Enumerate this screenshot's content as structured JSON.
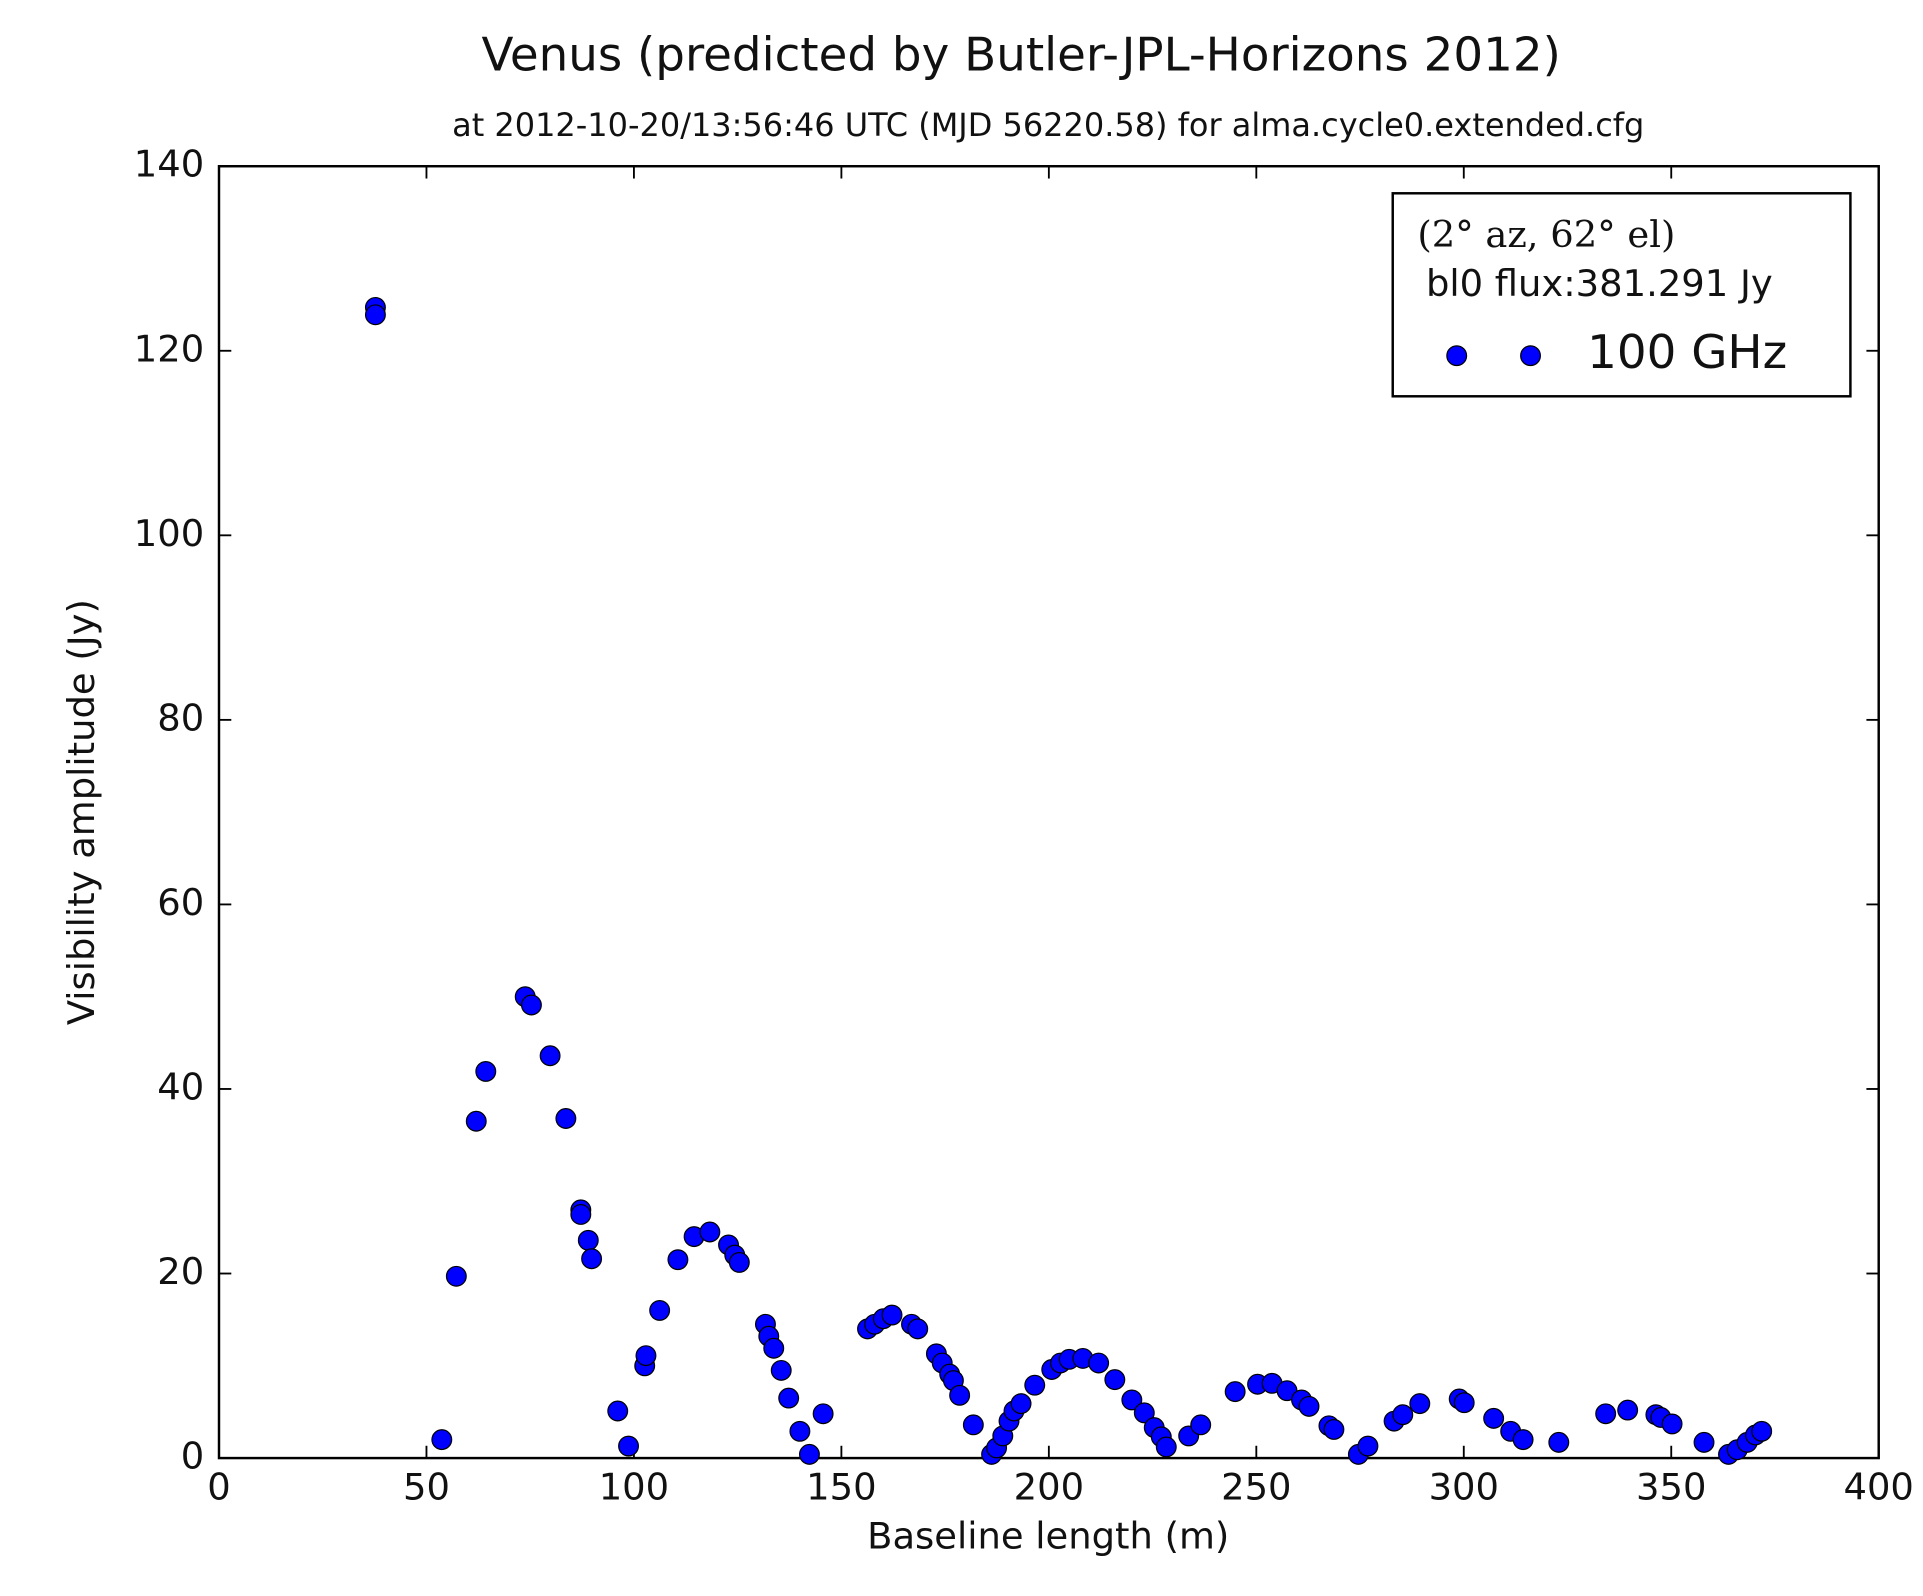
{
  "chart_data": {
    "type": "scatter",
    "title": "Venus (predicted by Butler-JPL-Horizons 2012)",
    "subtitle": "at 2012-10-20/13:56:46 UTC (MJD 56220.58) for alma.cycle0.extended.cfg",
    "x_label": "Baseline length (m)",
    "y_label": "Visibility amplitude (Jy)",
    "legend_title": [
      "(2°  az, 62°  el)",
      "bl0 flux:381.291 Jy"
    ],
    "legend": "upper right",
    "xlim": [
      0,
      400
    ],
    "xticks": [
      0,
      50,
      100,
      150,
      200,
      250,
      300,
      350,
      400
    ],
    "ylim": [
      0,
      140
    ],
    "yticks": [
      0,
      20,
      40,
      60,
      80,
      100,
      120,
      140
    ],
    "series": [
      {
        "name": "100 GHz",
        "color": "#0000ff",
        "x": [
          37.7,
          37.7,
          53.7,
          57.2,
          62.0,
          64.3,
          73.8,
          75.3,
          79.8,
          83.6,
          87.2,
          87.2,
          89.0,
          89.8,
          96.1,
          98.7,
          102.6,
          102.9,
          106.2,
          110.6,
          114.5,
          118.3,
          122.8,
          124.3,
          125.4,
          131.7,
          132.5,
          133.7,
          135.5,
          137.3,
          140.0,
          142.3,
          145.6,
          156.3,
          158.0,
          160.1,
          162.2,
          166.9,
          168.4,
          172.9,
          174.3,
          176.1,
          177.0,
          178.5,
          181.8,
          186.2,
          187.4,
          188.9,
          190.4,
          191.6,
          193.3,
          196.6,
          200.7,
          202.8,
          204.9,
          208.2,
          212.0,
          215.9,
          220.0,
          223.0,
          225.4,
          227.1,
          228.3,
          233.7,
          236.6,
          244.9,
          250.3,
          253.8,
          257.4,
          260.9,
          262.7,
          267.5,
          268.7,
          274.6,
          276.9,
          283.2,
          285.3,
          289.4,
          298.9,
          300.1,
          307.2,
          311.3,
          314.3,
          322.9,
          334.2,
          339.5,
          346.3,
          347.5,
          350.2,
          357.9,
          363.8,
          365.9,
          368.3,
          370.3,
          371.8
        ],
        "values": [
          124.7,
          123.9,
          2.0,
          19.7,
          36.5,
          41.9,
          50.0,
          49.1,
          43.6,
          36.8,
          26.9,
          26.4,
          23.6,
          21.6,
          5.1,
          1.3,
          10.0,
          11.1,
          16.0,
          21.5,
          24.0,
          24.5,
          23.1,
          22.0,
          21.2,
          14.5,
          13.2,
          11.9,
          9.5,
          6.5,
          2.9,
          0.4,
          4.8,
          14.0,
          14.5,
          15.1,
          15.5,
          14.5,
          14.0,
          11.3,
          10.3,
          9.1,
          8.4,
          6.8,
          3.6,
          0.4,
          1.1,
          2.4,
          4.0,
          5.1,
          5.9,
          7.9,
          9.6,
          10.3,
          10.7,
          10.8,
          10.3,
          8.5,
          6.3,
          4.9,
          3.3,
          2.3,
          1.2,
          2.4,
          3.6,
          7.2,
          8.0,
          8.1,
          7.3,
          6.3,
          5.6,
          3.5,
          3.1,
          0.4,
          1.3,
          4.0,
          4.7,
          5.9,
          6.4,
          6.0,
          4.3,
          2.9,
          2.0,
          1.7,
          4.8,
          5.2,
          4.7,
          4.4,
          3.7,
          1.7,
          0.4,
          0.9,
          1.7,
          2.5,
          2.9
        ]
      }
    ]
  }
}
